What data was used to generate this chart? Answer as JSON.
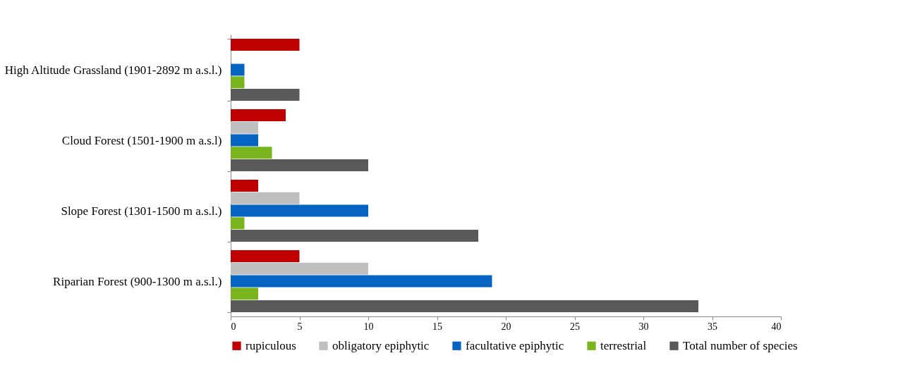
{
  "chart_data": {
    "type": "bar",
    "orientation": "horizontal",
    "categories": [
      "High Altitude Grassland (1901-2892 m a.s.l.)",
      "Cloud Forest (1501-1900 m a.s.l)",
      "Slope Forest (1301-1500 m a.s.l.)",
      "Riparian Forest (900-1300 m a.s.l.)"
    ],
    "series": [
      {
        "name": "rupiculous",
        "color": "#c00000",
        "values": [
          5,
          4,
          2,
          5
        ]
      },
      {
        "name": "obligatory epiphytic",
        "color": "#bfbfbf",
        "values": [
          0,
          2,
          5,
          10
        ]
      },
      {
        "name": "facultative epiphytic",
        "color": "#0563c1",
        "values": [
          1,
          2,
          10,
          19
        ]
      },
      {
        "name": "terrestrial",
        "color": "#7ab51d",
        "values": [
          1,
          3,
          1,
          2
        ]
      },
      {
        "name": "Total number of species",
        "color": "#595959",
        "values": [
          5,
          10,
          18,
          34
        ]
      }
    ],
    "xlim": [
      0,
      40
    ],
    "xticks": [
      0,
      5,
      10,
      15,
      20,
      25,
      30,
      35,
      40
    ],
    "grid": false,
    "legend": "bottom"
  }
}
